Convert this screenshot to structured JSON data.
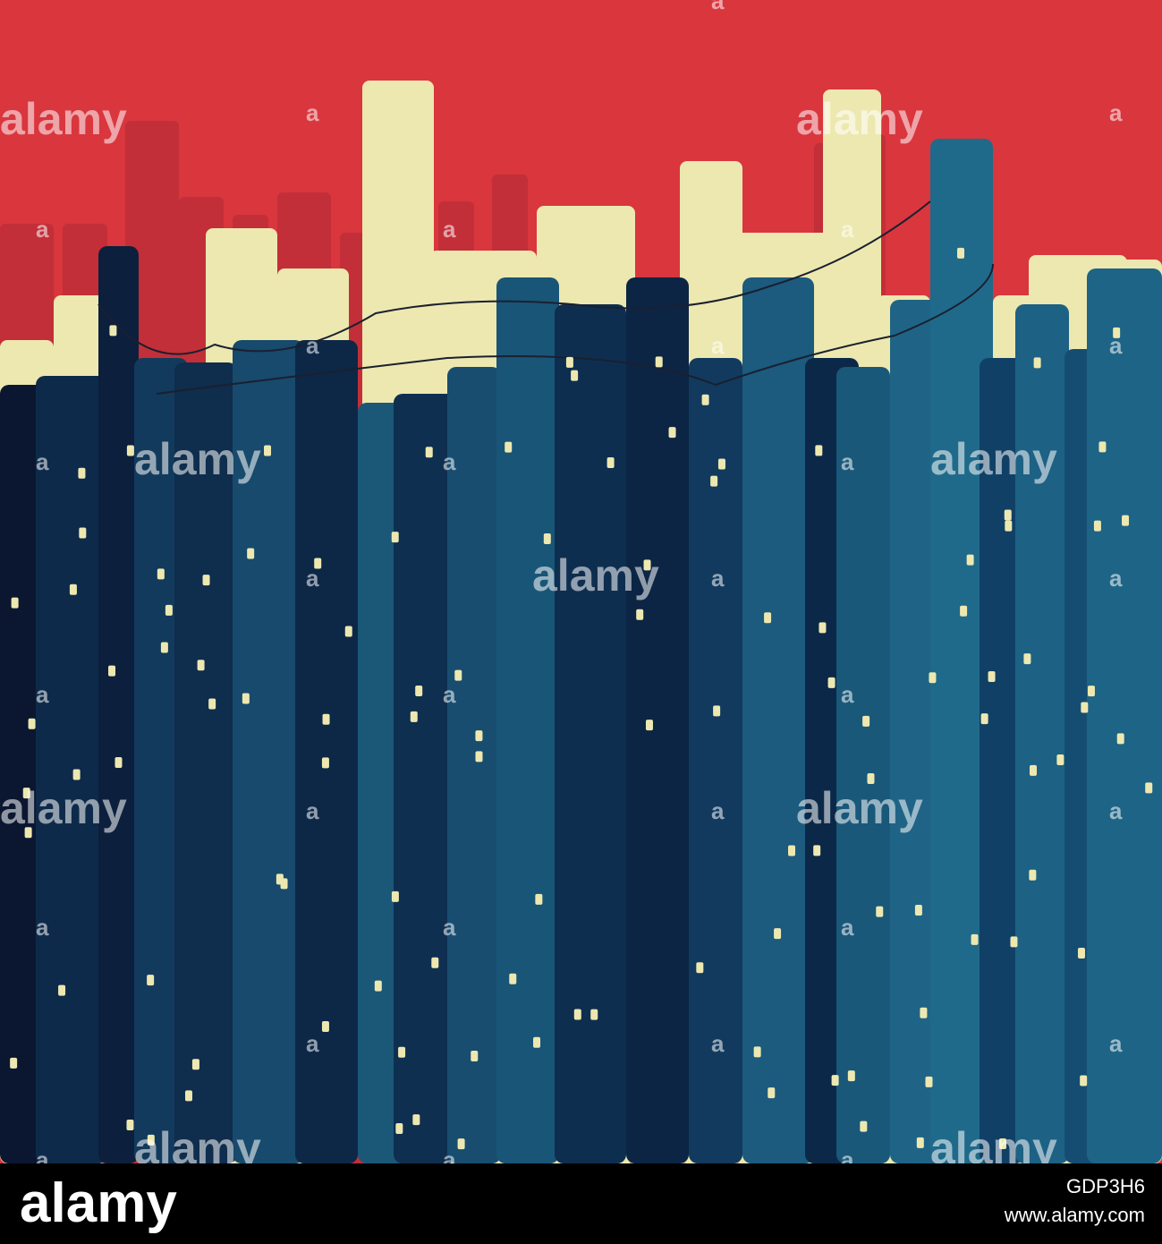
{
  "watermark": {
    "text": "alamy",
    "mark": "a"
  },
  "footer": {
    "logo": "alamy",
    "image_id": "GDP3H6",
    "url": "www.alamy.com"
  }
}
